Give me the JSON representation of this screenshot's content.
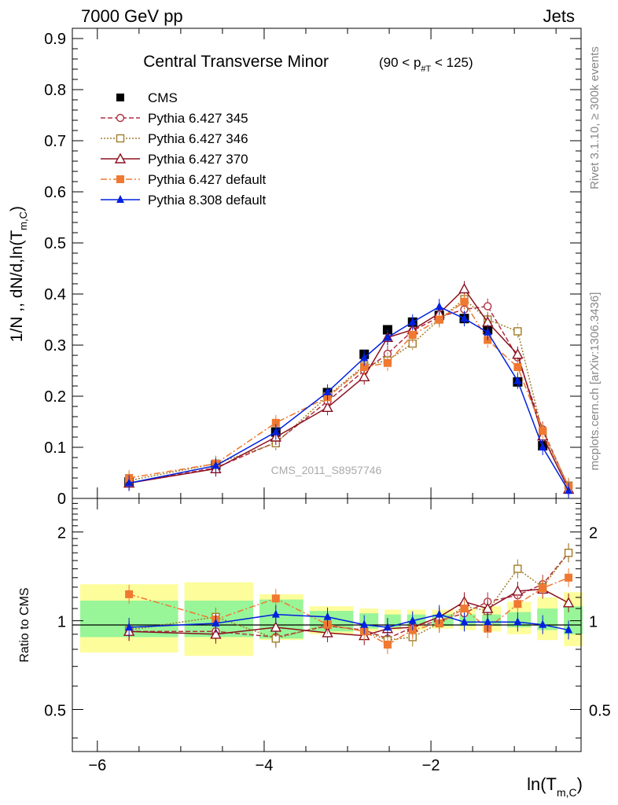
{
  "header": {
    "left": "7000 GeV pp",
    "right": "Jets"
  },
  "side_labels": {
    "rivet": "Rivet 3.1.10, ≥ 300k events",
    "mcplots": "mcplots.cern.ch [arXiv:1306.3436]"
  },
  "watermark": "CMS_2011_S8957746",
  "chart_data": [
    {
      "type": "line",
      "title": "Central Transverse Minor",
      "title_cut": "(90 < p",
      "title_cut_sub": "#T",
      "title_cut_end": " < 125)",
      "ylabel": "1/N ,, dN/d,ln(T",
      "ylabel_sub": "m,C",
      "ylabel_end": ")",
      "ylim": [
        0,
        0.92
      ],
      "xlim": [
        -6.3,
        -0.2
      ],
      "yticks": [
        0,
        0.1,
        0.2,
        0.3,
        0.4,
        0.5,
        0.6,
        0.7,
        0.8,
        0.9
      ],
      "ytick_labels": [
        "0",
        "0.1",
        "0.2",
        "0.3",
        "0.4",
        "0.5",
        "0.6",
        "0.7",
        "0.8",
        "0.9"
      ],
      "legend_position": "top-left",
      "series": [
        {
          "name": "CMS",
          "color": "#000000",
          "marker": "square-filled",
          "line": "none",
          "x": [
            -5.62,
            -4.58,
            -3.86,
            -3.24,
            -2.8,
            -2.52,
            -2.22,
            -1.9,
            -1.6,
            -1.32,
            -0.96,
            -0.66
          ],
          "y": [
            0.032,
            0.065,
            0.13,
            0.207,
            0.282,
            0.33,
            0.345,
            0.358,
            0.352,
            0.33,
            0.228,
            0.103
          ]
        },
        {
          "name": "Pythia 6.427 345",
          "color": "#b03040",
          "marker": "circle-open",
          "line": "dashed",
          "x": [
            -5.62,
            -4.58,
            -3.86,
            -3.24,
            -2.8,
            -2.52,
            -2.22,
            -1.9,
            -1.6,
            -1.32,
            -0.96,
            -0.66,
            -0.35
          ],
          "y": [
            0.03,
            0.06,
            0.11,
            0.19,
            0.25,
            0.283,
            0.328,
            0.355,
            0.37,
            0.376,
            0.276,
            0.135,
            0.022
          ]
        },
        {
          "name": "Pythia 6.427 346",
          "color": "#a07d2a",
          "marker": "square-open",
          "line": "dotted",
          "x": [
            -5.62,
            -4.58,
            -3.86,
            -3.24,
            -2.8,
            -2.52,
            -2.22,
            -1.9,
            -1.6,
            -1.32,
            -0.96,
            -0.66,
            -0.35
          ],
          "y": [
            0.035,
            0.068,
            0.108,
            0.2,
            0.26,
            0.27,
            0.303,
            0.35,
            0.39,
            0.35,
            0.327,
            0.128,
            0.025
          ]
        },
        {
          "name": "Pythia 6.427 370",
          "color": "#8b1020",
          "marker": "triangle-open",
          "line": "solid",
          "x": [
            -5.62,
            -4.58,
            -3.86,
            -3.24,
            -2.8,
            -2.52,
            -2.22,
            -1.9,
            -1.6,
            -1.32,
            -0.96,
            -0.66,
            -0.35
          ],
          "y": [
            0.03,
            0.058,
            0.12,
            0.178,
            0.238,
            0.315,
            0.33,
            0.362,
            0.41,
            0.345,
            0.282,
            0.122,
            0.018
          ]
        },
        {
          "name": "Pythia 6.427 default",
          "color": "#f07830",
          "marker": "square-filled",
          "line": "dashdot",
          "x": [
            -5.62,
            -4.58,
            -3.86,
            -3.24,
            -2.8,
            -2.52,
            -2.22,
            -1.9,
            -1.6,
            -1.32,
            -0.96,
            -0.66,
            -0.35
          ],
          "y": [
            0.04,
            0.068,
            0.148,
            0.198,
            0.257,
            0.265,
            0.32,
            0.35,
            0.385,
            0.31,
            0.257,
            0.132,
            0.023
          ]
        },
        {
          "name": "Pythia 8.308 default",
          "color": "#0020e0",
          "marker": "triangle-filled",
          "line": "solid",
          "x": [
            -5.62,
            -4.58,
            -3.86,
            -3.24,
            -2.8,
            -2.52,
            -2.22,
            -1.9,
            -1.6,
            -1.32,
            -0.96,
            -0.66,
            -0.35
          ],
          "y": [
            0.03,
            0.064,
            0.13,
            0.208,
            0.275,
            0.315,
            0.345,
            0.375,
            0.352,
            0.325,
            0.23,
            0.1,
            0.015
          ]
        }
      ]
    },
    {
      "type": "line",
      "ylabel": "Ratio to CMS",
      "xlabel": "ln(T",
      "xlabel_sub": "m,C",
      "xlabel_end": ")",
      "ylog": true,
      "ylim": [
        0.36,
        2.6
      ],
      "xlim": [
        -6.3,
        -0.2
      ],
      "yticks": [
        0.5,
        1,
        2
      ],
      "ytick_labels": [
        "0.5",
        "1",
        "2"
      ],
      "xticks": [
        -6,
        -4,
        -2
      ],
      "xtick_labels": [
        "−6",
        "−4",
        "−2"
      ],
      "bands": {
        "x_edges": [
          -6.3,
          -5.05,
          -4.15,
          -3.55,
          -2.95,
          -2.65,
          -2.38,
          -2.08,
          -1.75,
          -1.48,
          -1.18,
          -0.82,
          -0.5,
          -0.2
        ],
        "inner": [
          [
            0.88,
            1.17
          ],
          [
            0.88,
            1.17
          ],
          [
            0.87,
            1.18
          ],
          [
            0.92,
            1.08
          ],
          [
            0.94,
            1.06
          ],
          [
            0.95,
            1.05
          ],
          [
            0.96,
            1.05
          ],
          [
            0.96,
            1.05
          ],
          [
            0.96,
            1.05
          ],
          [
            0.96,
            1.05
          ],
          [
            0.95,
            1.07
          ],
          [
            0.93,
            1.1
          ],
          [
            0.9,
            1.12
          ]
        ],
        "outer": [
          [
            0.78,
            1.33
          ],
          [
            0.76,
            1.35
          ],
          [
            0.86,
            1.23
          ],
          [
            0.9,
            1.12
          ],
          [
            0.92,
            1.1
          ],
          [
            0.93,
            1.09
          ],
          [
            0.93,
            1.09
          ],
          [
            0.94,
            1.09
          ],
          [
            0.93,
            1.1
          ],
          [
            0.92,
            1.12
          ],
          [
            0.9,
            1.16
          ],
          [
            0.86,
            1.2
          ],
          [
            0.82,
            1.25
          ]
        ]
      },
      "series": [
        {
          "name": "Pythia 6.427 345",
          "color": "#b03040",
          "marker": "circle-open",
          "line": "dashed",
          "x": [
            -5.62,
            -4.58,
            -3.86,
            -3.24,
            -2.8,
            -2.52,
            -2.22,
            -1.9,
            -1.6,
            -1.32,
            -0.96,
            -0.66,
            -0.35
          ],
          "y": [
            0.92,
            0.92,
            0.88,
            0.96,
            0.93,
            0.87,
            0.95,
            1.0,
            1.06,
            1.16,
            1.22,
            1.33,
            1.7
          ]
        },
        {
          "name": "Pythia 6.427 346",
          "color": "#a07d2a",
          "marker": "square-open",
          "line": "dotted",
          "x": [
            -5.62,
            -4.58,
            -3.86,
            -3.24,
            -2.8,
            -2.52,
            -2.22,
            -1.9,
            -1.6,
            -1.32,
            -0.96,
            -0.66,
            -0.35
          ],
          "y": [
            0.93,
            1.03,
            0.87,
            0.97,
            0.92,
            0.86,
            0.88,
            0.98,
            1.12,
            1.08,
            1.5,
            1.3,
            1.7
          ]
        },
        {
          "name": "Pythia 6.427 370",
          "color": "#8b1020",
          "marker": "triangle-open",
          "line": "solid",
          "x": [
            -5.62,
            -4.58,
            -3.86,
            -3.24,
            -2.8,
            -2.52,
            -2.22,
            -1.9,
            -1.6,
            -1.32,
            -0.96,
            -0.66,
            -0.35
          ],
          "y": [
            0.92,
            0.9,
            0.95,
            0.91,
            0.89,
            0.94,
            0.95,
            1.03,
            1.16,
            1.1,
            1.26,
            1.28,
            1.15
          ]
        },
        {
          "name": "Pythia 6.427 default",
          "color": "#f07830",
          "marker": "square-filled",
          "line": "dashdot",
          "x": [
            -5.62,
            -4.58,
            -3.86,
            -3.24,
            -2.8,
            -2.52,
            -2.22,
            -1.9,
            -1.6,
            -1.32,
            -0.96,
            -0.66,
            -0.35
          ],
          "y": [
            1.23,
            1.01,
            1.19,
            0.97,
            0.92,
            0.83,
            0.93,
            0.98,
            1.1,
            0.94,
            1.14,
            1.29,
            1.4
          ]
        },
        {
          "name": "Pythia 8.308 default",
          "color": "#0020e0",
          "marker": "triangle-filled",
          "line": "solid",
          "x": [
            -5.62,
            -4.58,
            -3.86,
            -3.24,
            -2.8,
            -2.52,
            -2.22,
            -1.9,
            -1.6,
            -1.32,
            -0.96,
            -0.66,
            -0.35
          ],
          "y": [
            0.95,
            0.98,
            1.05,
            1.03,
            0.97,
            0.95,
            1.0,
            1.05,
            0.99,
            0.99,
            0.99,
            0.97,
            0.93
          ]
        }
      ]
    }
  ]
}
